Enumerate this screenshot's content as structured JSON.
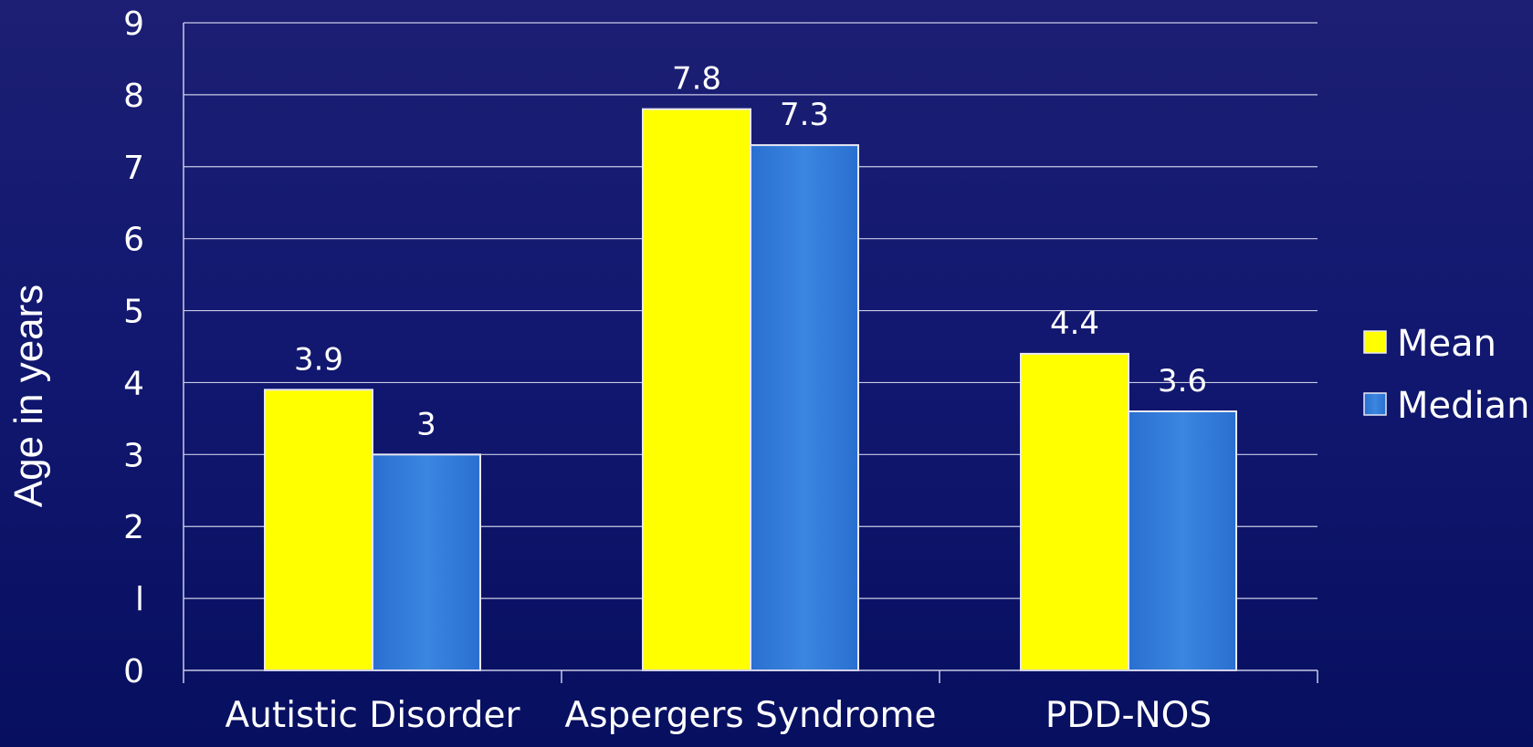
{
  "chart_data": {
    "type": "bar",
    "title": "",
    "xlabel": "",
    "ylabel": "Age  in years",
    "categories": [
      "Autistic Disorder",
      "Aspergers Syndrome",
      "PDD-NOS"
    ],
    "series": [
      {
        "name": "Mean",
        "color": "#ffff00",
        "values": [
          3.9,
          7.8,
          4.4
        ],
        "labels": [
          "3.9",
          "7.8",
          "4.4"
        ]
      },
      {
        "name": "Median",
        "color": "#2e7bd6",
        "values": [
          3,
          7.3,
          3.6
        ],
        "labels": [
          "3",
          "7.3",
          "3.6"
        ]
      }
    ],
    "ylim": [
      0,
      9
    ],
    "yticks": [
      "0",
      "l",
      "2",
      "3",
      "4",
      "5",
      "6",
      "7",
      "8",
      "9"
    ],
    "grid": true,
    "legend_position": "right"
  }
}
